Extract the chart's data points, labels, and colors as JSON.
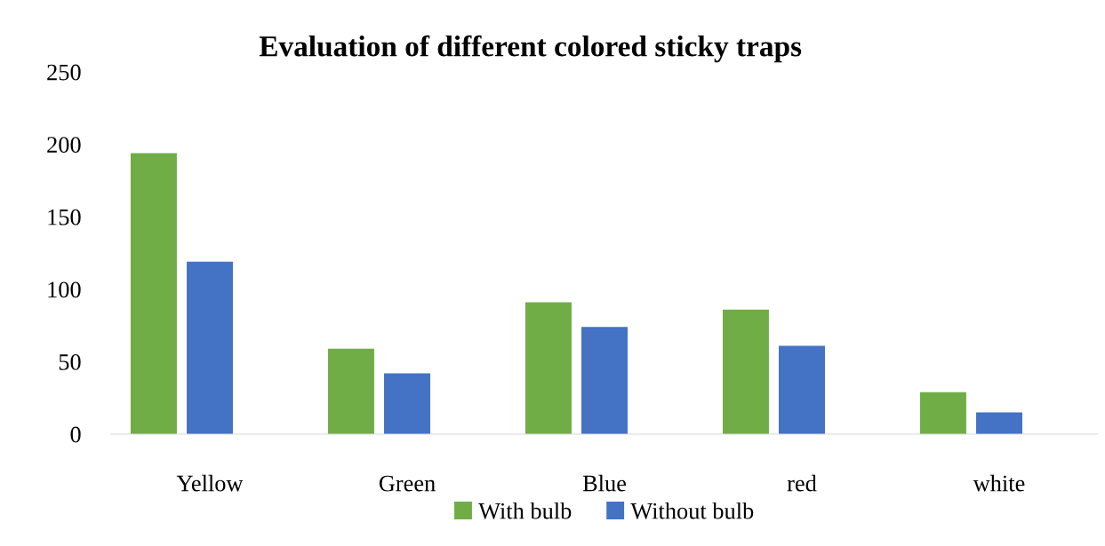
{
  "chart_data": {
    "type": "bar",
    "title": "Evaluation of different colored sticky traps",
    "categories": [
      "Yellow",
      "Green",
      "Blue",
      "red",
      "white"
    ],
    "series": [
      {
        "name": "With bulb",
        "color": "#70ad47",
        "values": [
          194,
          59,
          91,
          86,
          29
        ]
      },
      {
        "name": "Without bulb",
        "color": "#4472c4",
        "values": [
          119,
          42,
          74,
          61,
          15
        ]
      }
    ],
    "ylim": [
      0,
      250
    ],
    "yticks": [
      0,
      50,
      100,
      150,
      200,
      250
    ],
    "grid": false,
    "legend": "bottom"
  }
}
